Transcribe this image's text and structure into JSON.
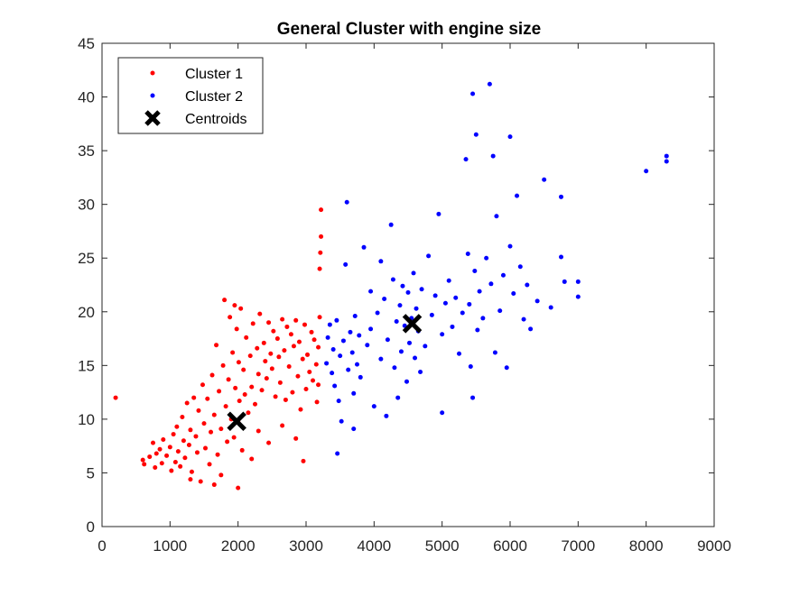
{
  "chart_data": {
    "type": "scatter",
    "title": "General Cluster with engine size",
    "xlabel": "",
    "ylabel": "",
    "xlim": [
      0,
      9000
    ],
    "ylim": [
      0,
      45
    ],
    "xticks": [
      0,
      1000,
      2000,
      3000,
      4000,
      5000,
      6000,
      7000,
      8000,
      9000
    ],
    "yticks": [
      0,
      5,
      10,
      15,
      20,
      25,
      30,
      35,
      40,
      45
    ],
    "grid": false,
    "legend": {
      "placement": "top-left",
      "entries": [
        "Cluster 1",
        "Cluster 2",
        "Centroids"
      ]
    },
    "series": [
      {
        "name": "Cluster 1",
        "color": "#ff0000",
        "marker": "dot",
        "points": [
          [
            200,
            12
          ],
          [
            600,
            6.2
          ],
          [
            620,
            5.8
          ],
          [
            700,
            6.5
          ],
          [
            750,
            7.8
          ],
          [
            780,
            5.5
          ],
          [
            800,
            6.8
          ],
          [
            850,
            7.2
          ],
          [
            880,
            5.9
          ],
          [
            900,
            8.1
          ],
          [
            950,
            6.6
          ],
          [
            1000,
            7.4
          ],
          [
            1020,
            5.2
          ],
          [
            1050,
            8.6
          ],
          [
            1080,
            6.0
          ],
          [
            1100,
            9.3
          ],
          [
            1120,
            7.0
          ],
          [
            1150,
            5.6
          ],
          [
            1180,
            10.2
          ],
          [
            1200,
            8.0
          ],
          [
            1220,
            6.4
          ],
          [
            1250,
            11.5
          ],
          [
            1280,
            7.6
          ],
          [
            1300,
            9.0
          ],
          [
            1320,
            5.1
          ],
          [
            1350,
            12.0
          ],
          [
            1380,
            8.4
          ],
          [
            1400,
            6.9
          ],
          [
            1420,
            10.8
          ],
          [
            1450,
            4.2
          ],
          [
            1480,
            13.2
          ],
          [
            1500,
            9.6
          ],
          [
            1520,
            7.3
          ],
          [
            1550,
            11.9
          ],
          [
            1580,
            5.8
          ],
          [
            1600,
            8.8
          ],
          [
            1620,
            14.1
          ],
          [
            1650,
            10.4
          ],
          [
            1680,
            16.9
          ],
          [
            1700,
            6.7
          ],
          [
            1720,
            12.6
          ],
          [
            1750,
            9.1
          ],
          [
            1780,
            15.0
          ],
          [
            1800,
            21.1
          ],
          [
            1820,
            11.2
          ],
          [
            1840,
            7.9
          ],
          [
            1860,
            13.7
          ],
          [
            1880,
            19.5
          ],
          [
            1900,
            10.0
          ],
          [
            1920,
            16.2
          ],
          [
            1940,
            8.3
          ],
          [
            1960,
            12.9
          ],
          [
            1980,
            18.4
          ],
          [
            2000,
            9.8
          ],
          [
            2010,
            15.3
          ],
          [
            2020,
            11.7
          ],
          [
            2040,
            20.3
          ],
          [
            2060,
            7.1
          ],
          [
            2080,
            14.6
          ],
          [
            2100,
            12.3
          ],
          [
            2120,
            17.6
          ],
          [
            2150,
            10.6
          ],
          [
            2180,
            15.9
          ],
          [
            2200,
            13.0
          ],
          [
            2220,
            18.9
          ],
          [
            2250,
            11.4
          ],
          [
            2280,
            16.6
          ],
          [
            2300,
            14.2
          ],
          [
            2320,
            19.8
          ],
          [
            2350,
            12.7
          ],
          [
            2380,
            17.1
          ],
          [
            2400,
            15.4
          ],
          [
            2420,
            13.8
          ],
          [
            2450,
            19.0
          ],
          [
            2480,
            16.1
          ],
          [
            2500,
            14.7
          ],
          [
            2520,
            18.2
          ],
          [
            2550,
            12.1
          ],
          [
            2580,
            17.5
          ],
          [
            2600,
            15.8
          ],
          [
            2620,
            13.4
          ],
          [
            2650,
            19.3
          ],
          [
            2680,
            16.4
          ],
          [
            2700,
            11.8
          ],
          [
            2720,
            18.6
          ],
          [
            2750,
            14.9
          ],
          [
            2780,
            17.9
          ],
          [
            2800,
            12.5
          ],
          [
            2820,
            16.8
          ],
          [
            2850,
            19.2
          ],
          [
            2880,
            14.0
          ],
          [
            2900,
            17.2
          ],
          [
            2920,
            10.9
          ],
          [
            2950,
            15.6
          ],
          [
            2980,
            18.8
          ],
          [
            3000,
            12.8
          ],
          [
            3020,
            16.0
          ],
          [
            3050,
            14.4
          ],
          [
            3080,
            18.1
          ],
          [
            3100,
            13.6
          ],
          [
            3120,
            17.4
          ],
          [
            3150,
            15.1
          ],
          [
            3180,
            16.7
          ],
          [
            3200,
            24.0
          ],
          [
            3210,
            25.5
          ],
          [
            3220,
            29.5
          ],
          [
            3220,
            27.0
          ],
          [
            3200,
            19.5
          ],
          [
            3180,
            13.2
          ],
          [
            3160,
            11.6
          ],
          [
            2960,
            6.1
          ],
          [
            2450,
            7.8
          ],
          [
            1650,
            3.9
          ],
          [
            1300,
            4.4
          ],
          [
            2000,
            3.6
          ],
          [
            1950,
            20.6
          ],
          [
            2300,
            8.9
          ],
          [
            2650,
            9.4
          ],
          [
            2850,
            8.2
          ],
          [
            1750,
            4.8
          ],
          [
            2200,
            6.3
          ]
        ]
      },
      {
        "name": "Cluster 2",
        "color": "#0000ff",
        "marker": "dot",
        "points": [
          [
            3300,
            15.2
          ],
          [
            3320,
            17.6
          ],
          [
            3350,
            18.8
          ],
          [
            3380,
            14.3
          ],
          [
            3400,
            16.5
          ],
          [
            3420,
            13.1
          ],
          [
            3450,
            19.2
          ],
          [
            3460,
            6.8
          ],
          [
            3480,
            11.7
          ],
          [
            3500,
            15.9
          ],
          [
            3520,
            9.8
          ],
          [
            3550,
            17.3
          ],
          [
            3580,
            24.4
          ],
          [
            3600,
            30.2
          ],
          [
            3620,
            14.6
          ],
          [
            3650,
            18.1
          ],
          [
            3680,
            16.2
          ],
          [
            3700,
            12.4
          ],
          [
            3720,
            19.6
          ],
          [
            3750,
            15.1
          ],
          [
            3780,
            17.8
          ],
          [
            3800,
            13.9
          ],
          [
            3850,
            26.0
          ],
          [
            3900,
            16.9
          ],
          [
            3950,
            18.4
          ],
          [
            4000,
            11.2
          ],
          [
            4050,
            19.9
          ],
          [
            4100,
            15.6
          ],
          [
            4150,
            21.2
          ],
          [
            4180,
            10.3
          ],
          [
            4200,
            17.4
          ],
          [
            4250,
            28.1
          ],
          [
            4280,
            23.0
          ],
          [
            4300,
            14.8
          ],
          [
            4330,
            19.1
          ],
          [
            4350,
            12.0
          ],
          [
            4380,
            20.6
          ],
          [
            4400,
            16.3
          ],
          [
            4420,
            22.4
          ],
          [
            4450,
            18.7
          ],
          [
            4480,
            13.5
          ],
          [
            4500,
            21.8
          ],
          [
            4520,
            17.1
          ],
          [
            4550,
            19.4
          ],
          [
            4580,
            23.6
          ],
          [
            4600,
            15.7
          ],
          [
            4620,
            20.3
          ],
          [
            4650,
            18.2
          ],
          [
            4680,
            14.4
          ],
          [
            4700,
            22.1
          ],
          [
            4750,
            16.8
          ],
          [
            4800,
            25.2
          ],
          [
            4850,
            19.7
          ],
          [
            4900,
            21.5
          ],
          [
            4950,
            29.1
          ],
          [
            5000,
            10.6
          ],
          [
            5000,
            17.9
          ],
          [
            5050,
            20.8
          ],
          [
            5100,
            22.9
          ],
          [
            5150,
            18.6
          ],
          [
            5200,
            21.3
          ],
          [
            5250,
            16.1
          ],
          [
            5300,
            19.9
          ],
          [
            5350,
            34.2
          ],
          [
            5380,
            25.4
          ],
          [
            5400,
            20.7
          ],
          [
            5420,
            14.9
          ],
          [
            5450,
            12.0
          ],
          [
            5450,
            40.3
          ],
          [
            5480,
            23.8
          ],
          [
            5500,
            36.5
          ],
          [
            5520,
            18.3
          ],
          [
            5550,
            21.9
          ],
          [
            5600,
            19.4
          ],
          [
            5650,
            25.0
          ],
          [
            5700,
            41.2
          ],
          [
            5720,
            22.6
          ],
          [
            5750,
            34.5
          ],
          [
            5780,
            16.2
          ],
          [
            5800,
            28.9
          ],
          [
            5850,
            20.1
          ],
          [
            5900,
            23.4
          ],
          [
            5950,
            14.8
          ],
          [
            6000,
            36.3
          ],
          [
            6000,
            26.1
          ],
          [
            6050,
            21.7
          ],
          [
            6100,
            30.8
          ],
          [
            6150,
            24.2
          ],
          [
            6200,
            19.3
          ],
          [
            6250,
            22.5
          ],
          [
            6300,
            18.4
          ],
          [
            6400,
            21.0
          ],
          [
            6500,
            32.3
          ],
          [
            6600,
            20.4
          ],
          [
            6750,
            30.7
          ],
          [
            6750,
            25.1
          ],
          [
            6800,
            22.8
          ],
          [
            7000,
            21.4
          ],
          [
            7000,
            22.8
          ],
          [
            8000,
            33.1
          ],
          [
            8300,
            34.5
          ],
          [
            8300,
            34.0
          ],
          [
            3950,
            21.9
          ],
          [
            4100,
            24.7
          ],
          [
            3700,
            9.1
          ]
        ]
      },
      {
        "name": "Centroids",
        "color": "#000000",
        "marker": "x",
        "points": [
          [
            1980,
            9.8
          ],
          [
            4560,
            18.9
          ]
        ]
      }
    ]
  }
}
